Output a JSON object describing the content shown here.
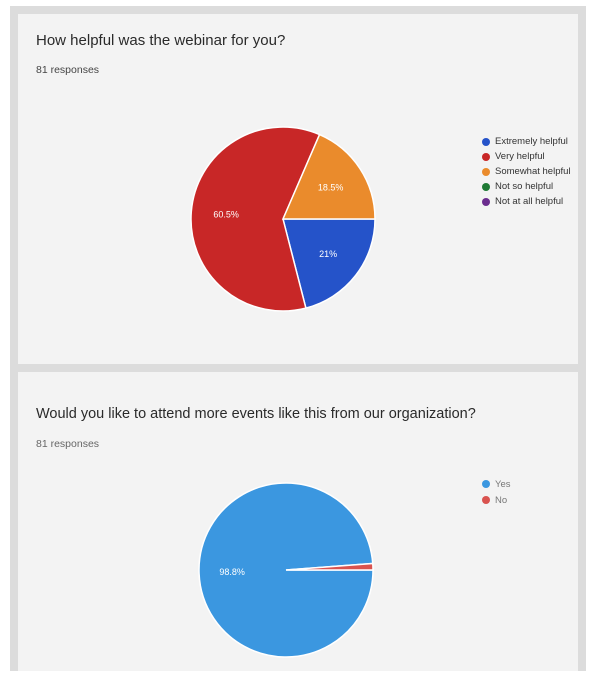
{
  "chart_data": [
    {
      "type": "pie",
      "title": "How helpful was the webinar for you?",
      "subtitle": "81 responses",
      "legend": "right",
      "categories": [
        "Extremely helpful",
        "Very helpful",
        "Somewhat helpful",
        "Not so helpful",
        "Not at all helpful"
      ],
      "values": [
        21,
        60.5,
        18.5,
        0,
        0
      ],
      "labels": [
        "21%",
        "60.5%",
        "18.5%",
        "",
        ""
      ],
      "colors": [
        "#2553c9",
        "#c82727",
        "#ea8b2c",
        "#1f7a35",
        "#6b2d8e"
      ]
    },
    {
      "type": "pie",
      "title": "Would you like to attend more events like this from our organization?",
      "subtitle": "81 responses",
      "legend": "right",
      "categories": [
        "Yes",
        "No"
      ],
      "values": [
        98.8,
        1.2
      ],
      "labels": [
        "98.8%",
        ""
      ],
      "colors": [
        "#3b97e0",
        "#d9534f"
      ]
    }
  ]
}
